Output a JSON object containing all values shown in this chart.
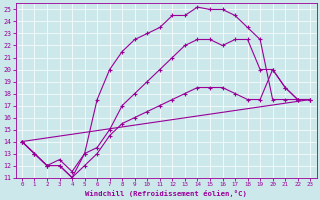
{
  "xlabel": "Windchill (Refroidissement éolien,°C)",
  "bg_color": "#cce8ea",
  "line_color": "#990099",
  "grid_color": "#ffffff",
  "xlim": [
    -0.5,
    23.5
  ],
  "ylim": [
    11,
    25.5
  ],
  "xticks": [
    0,
    1,
    2,
    3,
    4,
    5,
    6,
    7,
    8,
    9,
    10,
    11,
    12,
    13,
    14,
    15,
    16,
    17,
    18,
    19,
    20,
    21,
    22,
    23
  ],
  "yticks": [
    11,
    12,
    13,
    14,
    15,
    16,
    17,
    18,
    19,
    20,
    21,
    22,
    23,
    24,
    25
  ],
  "line1_x": [
    0,
    1,
    2,
    3,
    4,
    5,
    6,
    7,
    8,
    9,
    10,
    11,
    12,
    13,
    14,
    15,
    16,
    17,
    18,
    19,
    20,
    21,
    22,
    23
  ],
  "line1_y": [
    14.0,
    13.0,
    12.0,
    12.0,
    11.0,
    13.0,
    17.5,
    20.0,
    21.5,
    22.5,
    23.0,
    23.5,
    24.5,
    24.5,
    25.2,
    25.0,
    25.0,
    24.5,
    23.5,
    22.5,
    17.5,
    17.5,
    17.5,
    17.5
  ],
  "line2_x": [
    0,
    23
  ],
  "line2_y": [
    14.0,
    17.5
  ],
  "line3_x": [
    0,
    1,
    2,
    3,
    4,
    5,
    6,
    7,
    8,
    9,
    10,
    11,
    12,
    13,
    14,
    15,
    16,
    17,
    18,
    19,
    20,
    21,
    22,
    23
  ],
  "line3_y": [
    14.0,
    13.0,
    12.0,
    12.0,
    11.0,
    12.0,
    13.0,
    14.5,
    15.5,
    16.0,
    16.5,
    17.0,
    17.5,
    18.0,
    18.5,
    18.5,
    18.5,
    18.0,
    17.5,
    17.5,
    20.0,
    18.5,
    17.5,
    17.5
  ],
  "line4_x": [
    0,
    1,
    2,
    3,
    4,
    5,
    6,
    7,
    8,
    9,
    10,
    11,
    12,
    13,
    14,
    15,
    16,
    17,
    18,
    19,
    20,
    21,
    22,
    23
  ],
  "line4_y": [
    14.0,
    13.0,
    12.0,
    12.5,
    11.5,
    13.0,
    13.5,
    15.0,
    17.0,
    18.0,
    19.0,
    20.0,
    21.0,
    22.0,
    22.5,
    22.5,
    22.0,
    22.5,
    22.5,
    20.0,
    20.0,
    18.5,
    17.5,
    17.5
  ]
}
